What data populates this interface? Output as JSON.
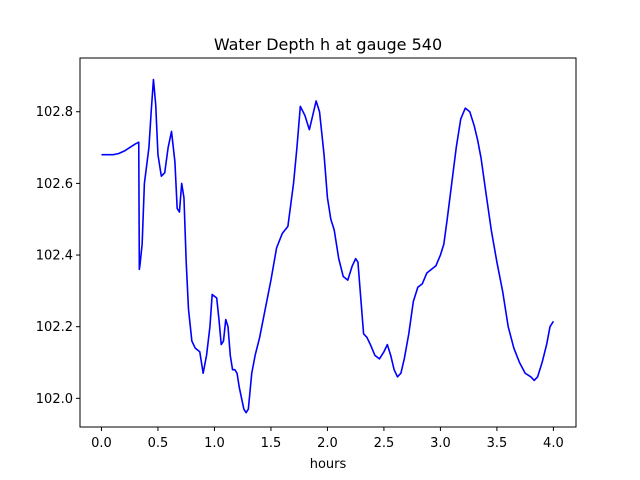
{
  "chart_data": {
    "type": "line",
    "title": "Water Depth h at gauge 540",
    "xlabel": "hours",
    "ylabel": "",
    "xlim": [
      -0.19,
      4.2
    ],
    "ylim": [
      101.92,
      102.95
    ],
    "xticks": [
      0.0,
      0.5,
      1.0,
      1.5,
      2.0,
      2.5,
      3.0,
      3.5,
      4.0
    ],
    "xtick_labels": [
      "0.0",
      "0.5",
      "1.0",
      "1.5",
      "2.0",
      "2.5",
      "3.0",
      "3.5",
      "4.0"
    ],
    "yticks": [
      102.0,
      102.2,
      102.4,
      102.6,
      102.8
    ],
    "ytick_labels": [
      "102.0",
      "102.2",
      "102.4",
      "102.6",
      "102.8"
    ],
    "grid": false,
    "legend": "none",
    "series": [
      {
        "color": "#0000ff",
        "x": [
          0.0,
          0.05,
          0.1,
          0.15,
          0.2,
          0.25,
          0.3,
          0.33,
          0.335,
          0.34,
          0.36,
          0.38,
          0.4,
          0.42,
          0.44,
          0.46,
          0.48,
          0.5,
          0.53,
          0.56,
          0.59,
          0.62,
          0.65,
          0.67,
          0.69,
          0.71,
          0.73,
          0.75,
          0.77,
          0.8,
          0.83,
          0.87,
          0.9,
          0.93,
          0.96,
          0.98,
          1.0,
          1.02,
          1.04,
          1.06,
          1.08,
          1.1,
          1.12,
          1.14,
          1.16,
          1.18,
          1.2,
          1.22,
          1.24,
          1.26,
          1.28,
          1.3,
          1.33,
          1.36,
          1.4,
          1.45,
          1.5,
          1.55,
          1.6,
          1.65,
          1.7,
          1.73,
          1.76,
          1.8,
          1.84,
          1.87,
          1.9,
          1.93,
          1.97,
          2.0,
          2.03,
          2.06,
          2.1,
          2.14,
          2.18,
          2.22,
          2.25,
          2.27,
          2.3,
          2.32,
          2.35,
          2.38,
          2.42,
          2.46,
          2.5,
          2.53,
          2.56,
          2.59,
          2.62,
          2.65,
          2.68,
          2.72,
          2.76,
          2.8,
          2.84,
          2.88,
          2.92,
          2.96,
          3.0,
          3.03,
          3.06,
          3.1,
          3.14,
          3.18,
          3.22,
          3.26,
          3.3,
          3.33,
          3.36,
          3.4,
          3.45,
          3.5,
          3.55,
          3.6,
          3.65,
          3.7,
          3.75,
          3.8,
          3.83,
          3.86,
          3.9,
          3.94,
          3.97,
          4.0
        ],
        "y": [
          102.68,
          102.68,
          102.68,
          102.683,
          102.69,
          102.7,
          102.71,
          102.715,
          102.36,
          102.37,
          102.43,
          102.6,
          102.65,
          102.7,
          102.8,
          102.89,
          102.82,
          102.68,
          102.62,
          102.63,
          102.7,
          102.745,
          102.66,
          102.53,
          102.52,
          102.6,
          102.56,
          102.38,
          102.25,
          102.16,
          102.14,
          102.13,
          102.07,
          102.12,
          102.2,
          102.29,
          102.285,
          102.28,
          102.22,
          102.15,
          102.16,
          102.22,
          102.2,
          102.12,
          102.08,
          102.08,
          102.07,
          102.03,
          102.0,
          101.97,
          101.96,
          101.97,
          102.07,
          102.12,
          102.17,
          102.25,
          102.33,
          102.42,
          102.46,
          102.48,
          102.6,
          102.7,
          102.815,
          102.79,
          102.75,
          102.79,
          102.83,
          102.8,
          102.68,
          102.56,
          102.5,
          102.47,
          102.39,
          102.34,
          102.33,
          102.37,
          102.39,
          102.38,
          102.26,
          102.18,
          102.17,
          102.15,
          102.12,
          102.11,
          102.13,
          102.15,
          102.12,
          102.08,
          102.06,
          102.07,
          102.11,
          102.18,
          102.27,
          102.31,
          102.32,
          102.35,
          102.36,
          102.37,
          102.4,
          102.43,
          102.5,
          102.6,
          102.7,
          102.78,
          102.81,
          102.8,
          102.76,
          102.72,
          102.67,
          102.58,
          102.47,
          102.38,
          102.3,
          102.2,
          102.14,
          102.1,
          102.07,
          102.06,
          102.05,
          102.06,
          102.1,
          102.15,
          102.2,
          102.215
        ]
      }
    ]
  }
}
